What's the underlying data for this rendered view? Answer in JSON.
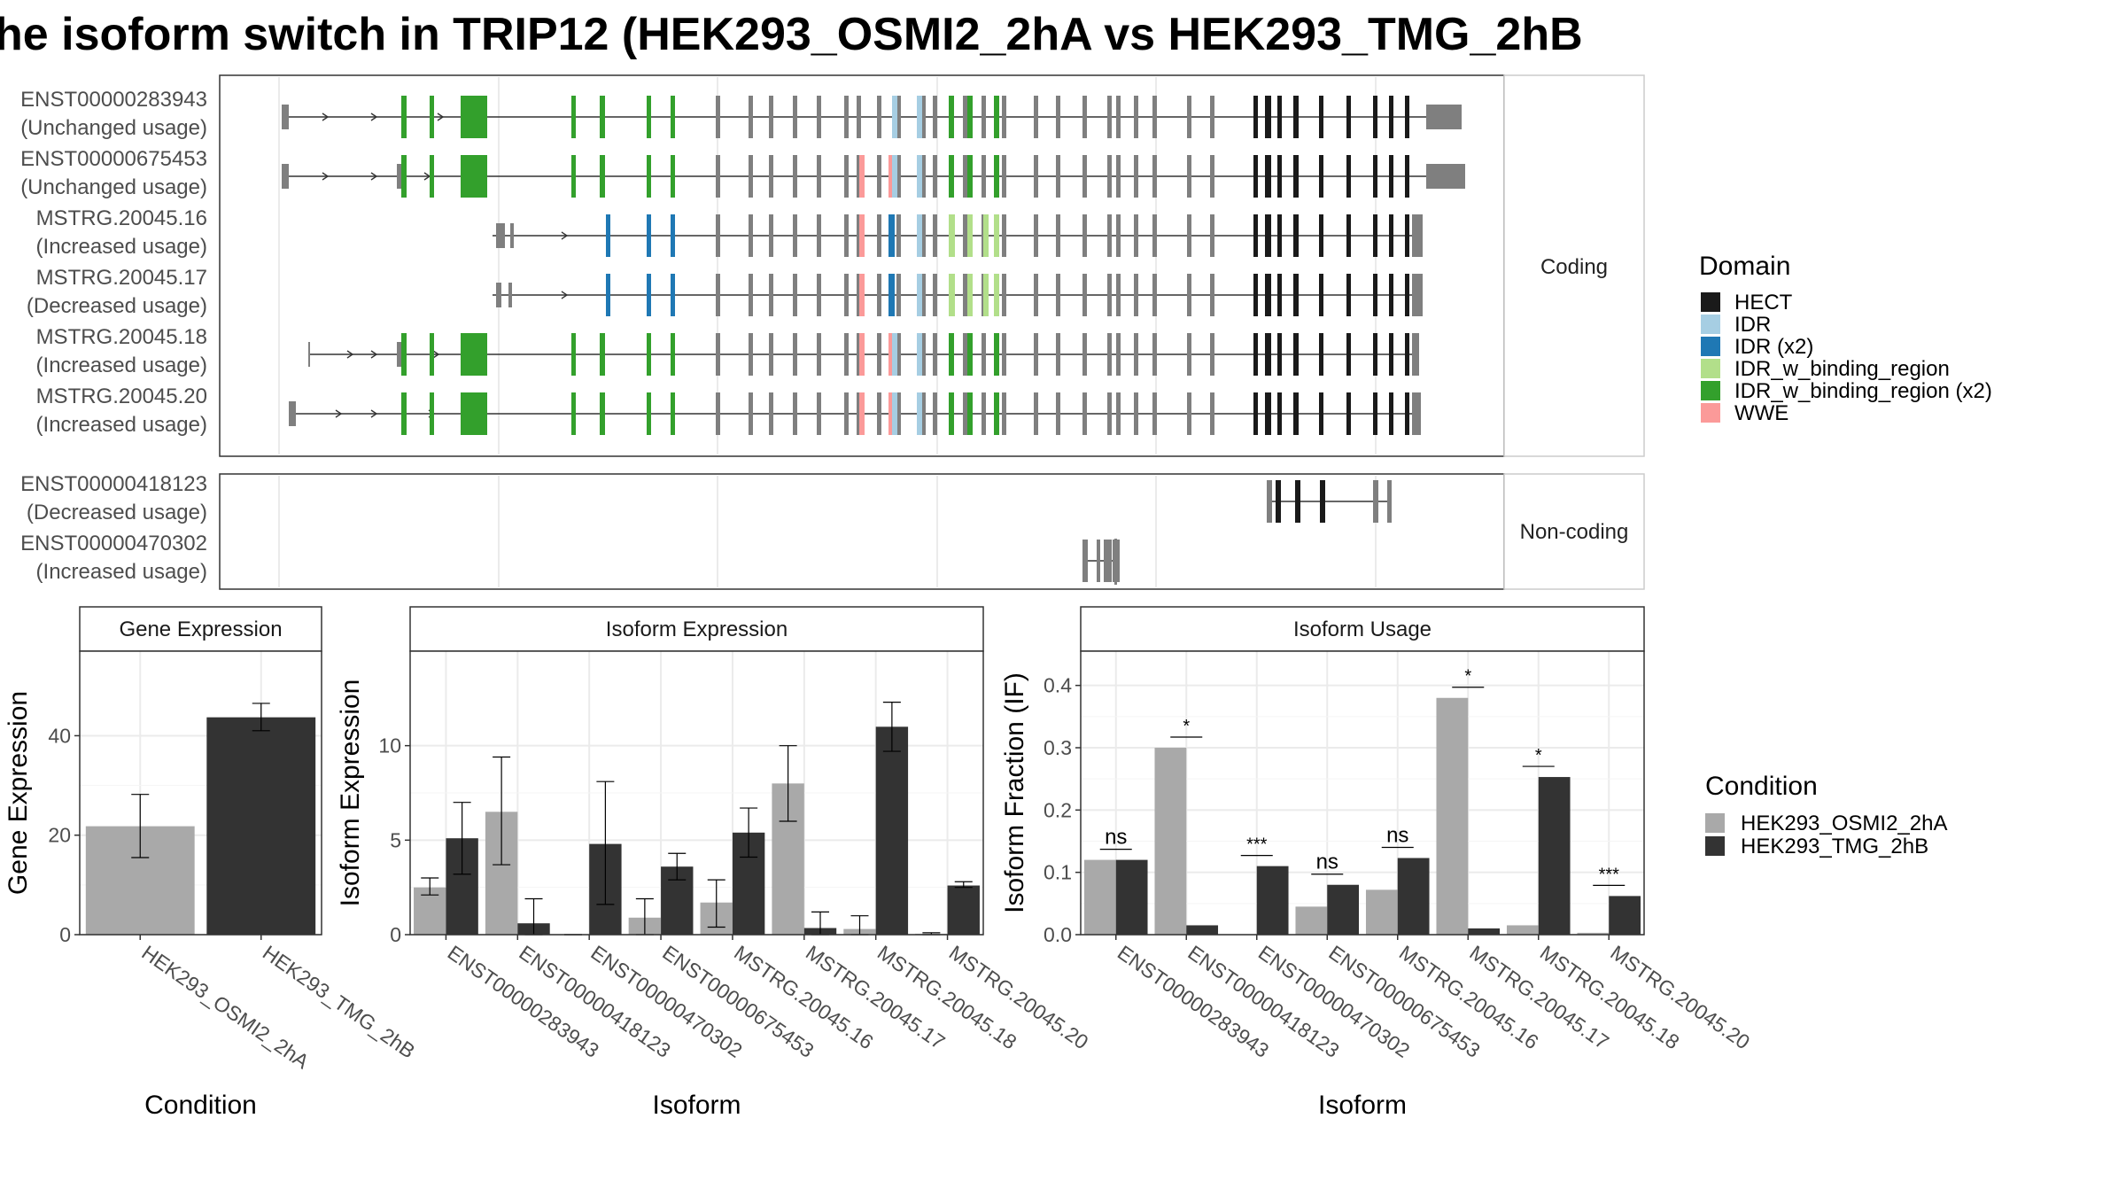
{
  "title": "he isoform switch in TRIP12 (HEK293_OSMI2_2hA vs HEK293_TMG_2hB",
  "colors": {
    "HECT": "#1a1a1a",
    "IDR": "#a6cee3",
    "IDR (x2)": "#1f78b4",
    "IDR_w_binding_region": "#b2df8a",
    "IDR_w_binding_region (x2)": "#33a02c",
    "WWE": "#fb9a99",
    "none": "#7f7f7f",
    "cond_A": "#a9a9a9",
    "cond_B": "#333333"
  },
  "structure": {
    "coding_label": "Coding",
    "noncoding_label": "Non-coding",
    "coding": [
      {
        "id": "ENST00000283943",
        "usage": "(Unchanged usage)"
      },
      {
        "id": "ENST00000675453",
        "usage": "(Unchanged usage)"
      },
      {
        "id": "MSTRG.20045.16",
        "usage": "(Increased usage)"
      },
      {
        "id": "MSTRG.20045.17",
        "usage": "(Decreased usage)"
      },
      {
        "id": "MSTRG.20045.18",
        "usage": "(Increased usage)"
      },
      {
        "id": "MSTRG.20045.20",
        "usage": "(Increased usage)"
      }
    ],
    "noncoding": [
      {
        "id": "ENST00000418123",
        "usage": "(Decreased usage)"
      },
      {
        "id": "ENST00000470302",
        "usage": "(Increased usage)"
      }
    ]
  },
  "legend_domain": {
    "title": "Domain",
    "items": [
      "HECT",
      "IDR",
      "IDR (x2)",
      "IDR_w_binding_region",
      "IDR_w_binding_region (x2)",
      "WWE"
    ]
  },
  "legend_condition": {
    "title": "Condition",
    "items": [
      "HEK293_OSMI2_2hA",
      "HEK293_TMG_2hB"
    ]
  },
  "chart_data": [
    {
      "type": "bar",
      "title": "Gene Expression",
      "xlabel": "Condition",
      "ylabel": "Gene Expression",
      "categories": [
        "HEK293_OSMI2_2hA",
        "HEK293_TMG_2hB"
      ],
      "values": [
        21.8,
        43.7
      ],
      "error_low": [
        15.5,
        41.0
      ],
      "error_high": [
        28.2,
        46.5
      ],
      "ylim": [
        0,
        57
      ],
      "yticks": [
        0,
        20,
        40
      ]
    },
    {
      "type": "bar",
      "title": "Isoform Expression",
      "xlabel": "Isoform",
      "ylabel": "Isoform Expression",
      "categories": [
        "ENST00000283943",
        "ENST00000418123",
        "ENST00000470302",
        "ENST00000675453",
        "MSTRG.20045.16",
        "MSTRG.20045.17",
        "MSTRG.20045.18",
        "MSTRG.20045.20"
      ],
      "series": [
        {
          "name": "HEK293_OSMI2_2hA",
          "values": [
            2.5,
            6.5,
            0.0,
            0.9,
            1.7,
            8.0,
            0.3,
            0.05
          ],
          "error_low": [
            2.1,
            3.7,
            0.0,
            0.0,
            0.4,
            6.0,
            0.0,
            0.0
          ],
          "error_high": [
            3.0,
            9.4,
            0.0,
            1.9,
            2.9,
            10.0,
            1.0,
            0.1
          ]
        },
        {
          "name": "HEK293_TMG_2hB",
          "values": [
            5.1,
            0.6,
            4.8,
            3.6,
            5.4,
            0.35,
            11.0,
            2.6
          ],
          "error_low": [
            3.2,
            0.0,
            1.6,
            2.9,
            4.1,
            0.0,
            9.7,
            2.5
          ],
          "error_high": [
            7.0,
            1.9,
            8.1,
            4.3,
            6.7,
            1.2,
            12.3,
            2.8
          ]
        }
      ],
      "ylim": [
        0,
        15
      ],
      "yticks": [
        0,
        5,
        10
      ]
    },
    {
      "type": "bar",
      "title": "Isoform Usage",
      "xlabel": "Isoform",
      "ylabel": "Isoform Fraction (IF)",
      "categories": [
        "ENST00000283943",
        "ENST00000418123",
        "ENST00000470302",
        "ENST00000675453",
        "MSTRG.20045.16",
        "MSTRG.20045.17",
        "MSTRG.20045.18",
        "MSTRG.20045.20"
      ],
      "series": [
        {
          "name": "HEK293_OSMI2_2hA",
          "values": [
            0.12,
            0.3,
            0.0,
            0.045,
            0.072,
            0.38,
            0.015,
            0.003
          ]
        },
        {
          "name": "HEK293_TMG_2hB",
          "values": [
            0.12,
            0.015,
            0.11,
            0.08,
            0.123,
            0.01,
            0.253,
            0.062
          ]
        }
      ],
      "significance": [
        "ns",
        "*",
        "***",
        "ns",
        "ns",
        "*",
        "*",
        "***"
      ],
      "ylim": [
        0,
        0.455
      ],
      "yticks": [
        0.0,
        0.1,
        0.2,
        0.3,
        0.4
      ],
      "ytick_labels": [
        "0.0",
        "0.1",
        "0.2",
        "0.3",
        "0.4"
      ]
    }
  ]
}
